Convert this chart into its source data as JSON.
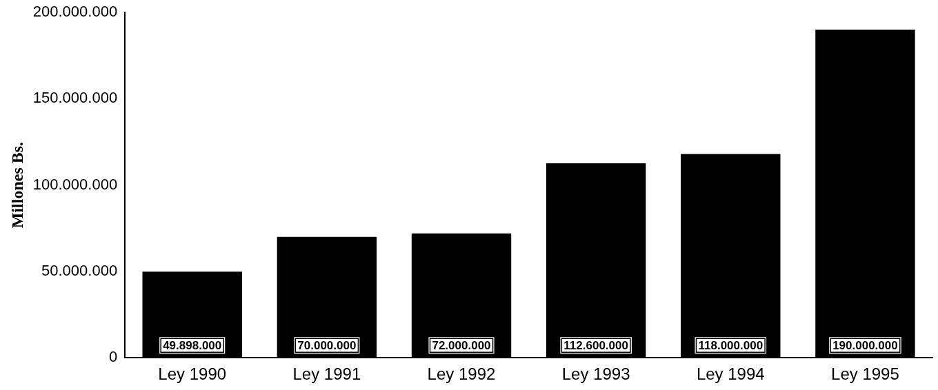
{
  "chart_data": {
    "type": "bar",
    "ylabel": "Millones Bs.",
    "categories": [
      "Ley 1990",
      "Ley 1991",
      "Ley 1992",
      "Ley 1993",
      "Ley 1994",
      "Ley 1995"
    ],
    "values": [
      49898000,
      70000000,
      72000000,
      112600000,
      118000000,
      190000000
    ],
    "value_labels": [
      "49.898.000",
      "70.000.000",
      "72.000.000",
      "112.600.000",
      "118.000.000",
      "190.000.000"
    ],
    "color": "#000000",
    "ylim": [
      0,
      200000000
    ],
    "yticks": [
      0,
      {
        "value": 50000000,
        "label": "50.000.000"
      },
      {
        "value": 100000000,
        "label": "100.000.000"
      },
      {
        "value": 150000000,
        "label": "150.000.000"
      },
      {
        "value": 200000000,
        "label": "200.000.000"
      }
    ],
    "grid": false,
    "legend": false
  }
}
